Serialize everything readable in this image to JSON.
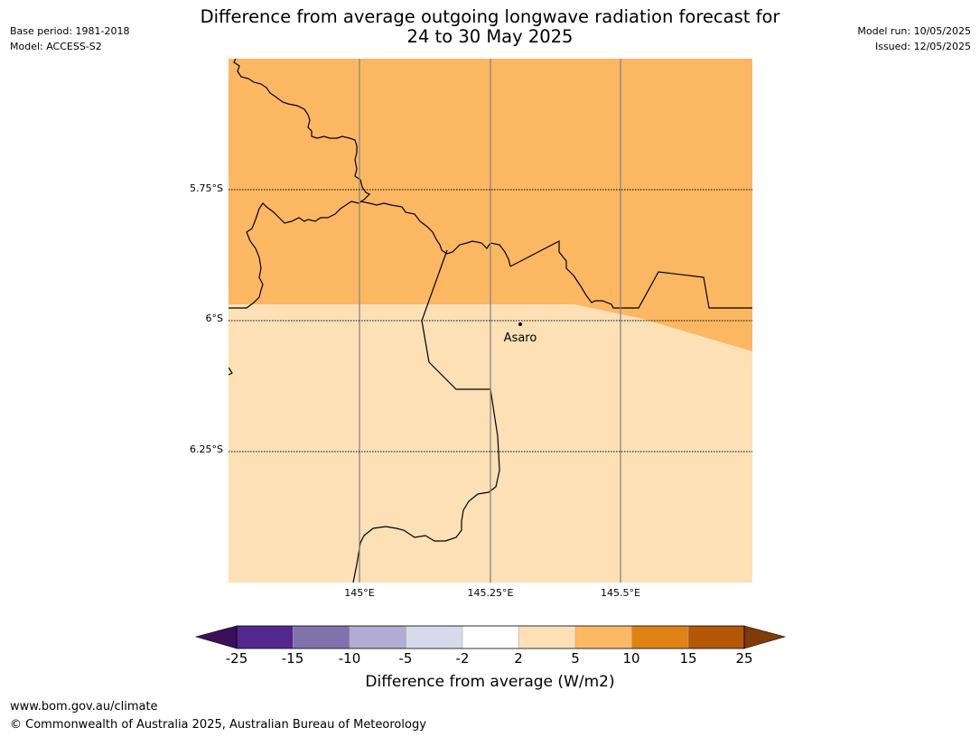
{
  "title_line1": "Difference from average outgoing longwave radiation forecast for",
  "title_line2": "24 to 30 May 2025",
  "meta_left": {
    "base_period": "Base period: 1981-2018",
    "model": "Model: ACCESS-S2"
  },
  "meta_right": {
    "model_run": "Model run: 10/05/2025",
    "issued": "Issued: 12/05/2025"
  },
  "map": {
    "lat_labels": [
      "5.75°S",
      "6°S",
      "6.25°S"
    ],
    "lon_labels": [
      "145°E",
      "145.25°E",
      "145.5°E"
    ],
    "place_label": "Asaro",
    "fill_colors": {
      "upper_band": "#fbb762",
      "lower_band": "#fde0b6"
    }
  },
  "colorbar": {
    "ticks": [
      "-25",
      "-15",
      "-10",
      "-5",
      "-2",
      "2",
      "5",
      "10",
      "15",
      "25"
    ],
    "colors": [
      "#3b0f5c",
      "#54278f",
      "#8073ac",
      "#b2abd2",
      "#d8daeb",
      "#ffffff",
      "#fee0b6",
      "#fdb863",
      "#e08214",
      "#b35806",
      "#7f3b08"
    ],
    "label": "Difference from average (W/m2)"
  },
  "footer": {
    "url": "www.bom.gov.au/climate",
    "copyright": "© Commonwealth of Australia 2025, Australian Bureau of Meteorology"
  }
}
